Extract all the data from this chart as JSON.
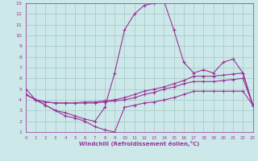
{
  "xlabel": "Windchill (Refroidissement éolien,°C)",
  "background_color": "#cde8e8",
  "grid_color": "#aacccc",
  "line_color": "#993399",
  "xlim": [
    0,
    23
  ],
  "ylim": [
    1,
    13
  ],
  "xticks": [
    0,
    1,
    2,
    3,
    4,
    5,
    6,
    7,
    8,
    9,
    10,
    11,
    12,
    13,
    14,
    15,
    16,
    17,
    18,
    19,
    20,
    21,
    22,
    23
  ],
  "yticks": [
    1,
    2,
    3,
    4,
    5,
    6,
    7,
    8,
    9,
    10,
    11,
    12,
    13
  ],
  "series": [
    {
      "x": [
        0,
        1,
        2,
        3,
        4,
        5,
        6,
        7,
        8,
        9,
        10,
        11,
        12,
        13,
        14,
        15,
        16,
        17,
        18,
        19,
        20,
        21,
        22,
        23
      ],
      "y": [
        5.0,
        4.0,
        3.5,
        3.0,
        2.8,
        2.5,
        2.2,
        2.0,
        3.3,
        6.5,
        10.5,
        12.0,
        12.8,
        13.0,
        13.2,
        10.5,
        7.5,
        6.5,
        6.8,
        6.5,
        7.5,
        7.8,
        6.5,
        3.5
      ]
    },
    {
      "x": [
        0,
        1,
        2,
        3,
        4,
        5,
        6,
        7,
        8,
        9,
        10,
        11,
        12,
        13,
        14,
        15,
        16,
        17,
        18,
        19,
        20,
        21,
        22,
        23
      ],
      "y": [
        4.5,
        4.0,
        3.8,
        3.7,
        3.7,
        3.7,
        3.8,
        3.8,
        3.9,
        4.0,
        4.2,
        4.5,
        4.8,
        5.0,
        5.2,
        5.5,
        5.8,
        6.2,
        6.2,
        6.2,
        6.3,
        6.4,
        6.5,
        3.5
      ]
    },
    {
      "x": [
        0,
        1,
        2,
        3,
        4,
        5,
        6,
        7,
        8,
        9,
        10,
        11,
        12,
        13,
        14,
        15,
        16,
        17,
        18,
        19,
        20,
        21,
        22,
        23
      ],
      "y": [
        4.5,
        4.0,
        3.8,
        3.7,
        3.7,
        3.7,
        3.7,
        3.7,
        3.8,
        3.9,
        4.0,
        4.2,
        4.5,
        4.7,
        5.0,
        5.2,
        5.5,
        5.7,
        5.7,
        5.7,
        5.8,
        5.9,
        6.0,
        3.5
      ]
    },
    {
      "x": [
        0,
        1,
        2,
        3,
        4,
        5,
        6,
        7,
        8,
        9,
        10,
        11,
        12,
        13,
        14,
        15,
        16,
        17,
        18,
        19,
        20,
        21,
        22,
        23
      ],
      "y": [
        4.5,
        4.0,
        3.5,
        3.0,
        2.5,
        2.3,
        2.0,
        1.5,
        1.2,
        1.0,
        3.3,
        3.5,
        3.7,
        3.8,
        4.0,
        4.2,
        4.5,
        4.8,
        4.8,
        4.8,
        4.8,
        4.8,
        4.8,
        3.5
      ]
    }
  ]
}
